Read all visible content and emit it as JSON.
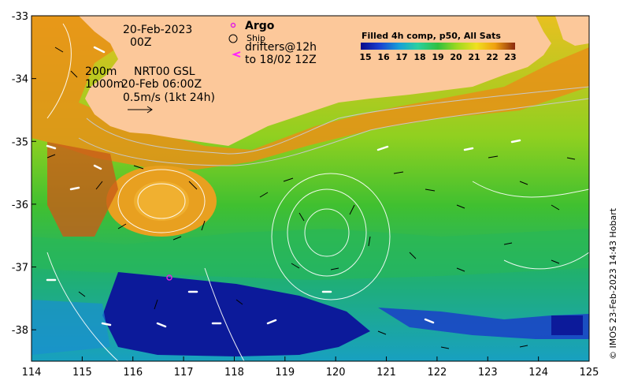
{
  "date_line1": "20-Feb-2023",
  "date_line2": "00Z",
  "argo_label": "Argo",
  "ship_label": "Ship",
  "drifters_line1": "drifters@12h",
  "drifters_line2": "to 18/02 12Z",
  "contour_label_200m": "200m",
  "contour_label_1000m": "1000m",
  "altimetry_line1": "NRT00 GSL",
  "altimetry_line2": "20-Feb 06:00Z",
  "scale_label": "0.5m/s (1kt 24h)",
  "colorbar_title": "Filled 4h comp, p50, All Sats",
  "colorbar_ticks": [
    "15",
    "16",
    "17",
    "18",
    "19",
    "20",
    "21",
    "22",
    "23"
  ],
  "credit": "© IMOS 23-Feb-2023 14:43 Hobart",
  "colors": {
    "land": "#fcc89a",
    "argo": "#e020e0",
    "drifter": "#ff20ff",
    "ramp": [
      "#0a0a8a",
      "#1a3fd0",
      "#17a0d8",
      "#2ad0a0",
      "#30c040",
      "#9ad820",
      "#f0e020",
      "#f0a010",
      "#d85010",
      "#8a2a10"
    ]
  },
  "chart_data": {
    "type": "map",
    "x_axis": {
      "unit": "degrees E",
      "range": [
        114,
        125
      ],
      "ticks": [
        "114",
        "115",
        "116",
        "117",
        "118",
        "119",
        "120",
        "121",
        "122",
        "123",
        "124",
        "125"
      ]
    },
    "y_axis": {
      "unit": "degrees",
      "range": [
        -38.5,
        -33
      ],
      "ticks": [
        "-33",
        "-34",
        "-35",
        "-36",
        "-37",
        "-38"
      ]
    },
    "colorbar": {
      "range": [
        15,
        23
      ],
      "unit": "SST"
    },
    "argo_float": {
      "lon": 116.7,
      "lat": -37.2
    }
  }
}
